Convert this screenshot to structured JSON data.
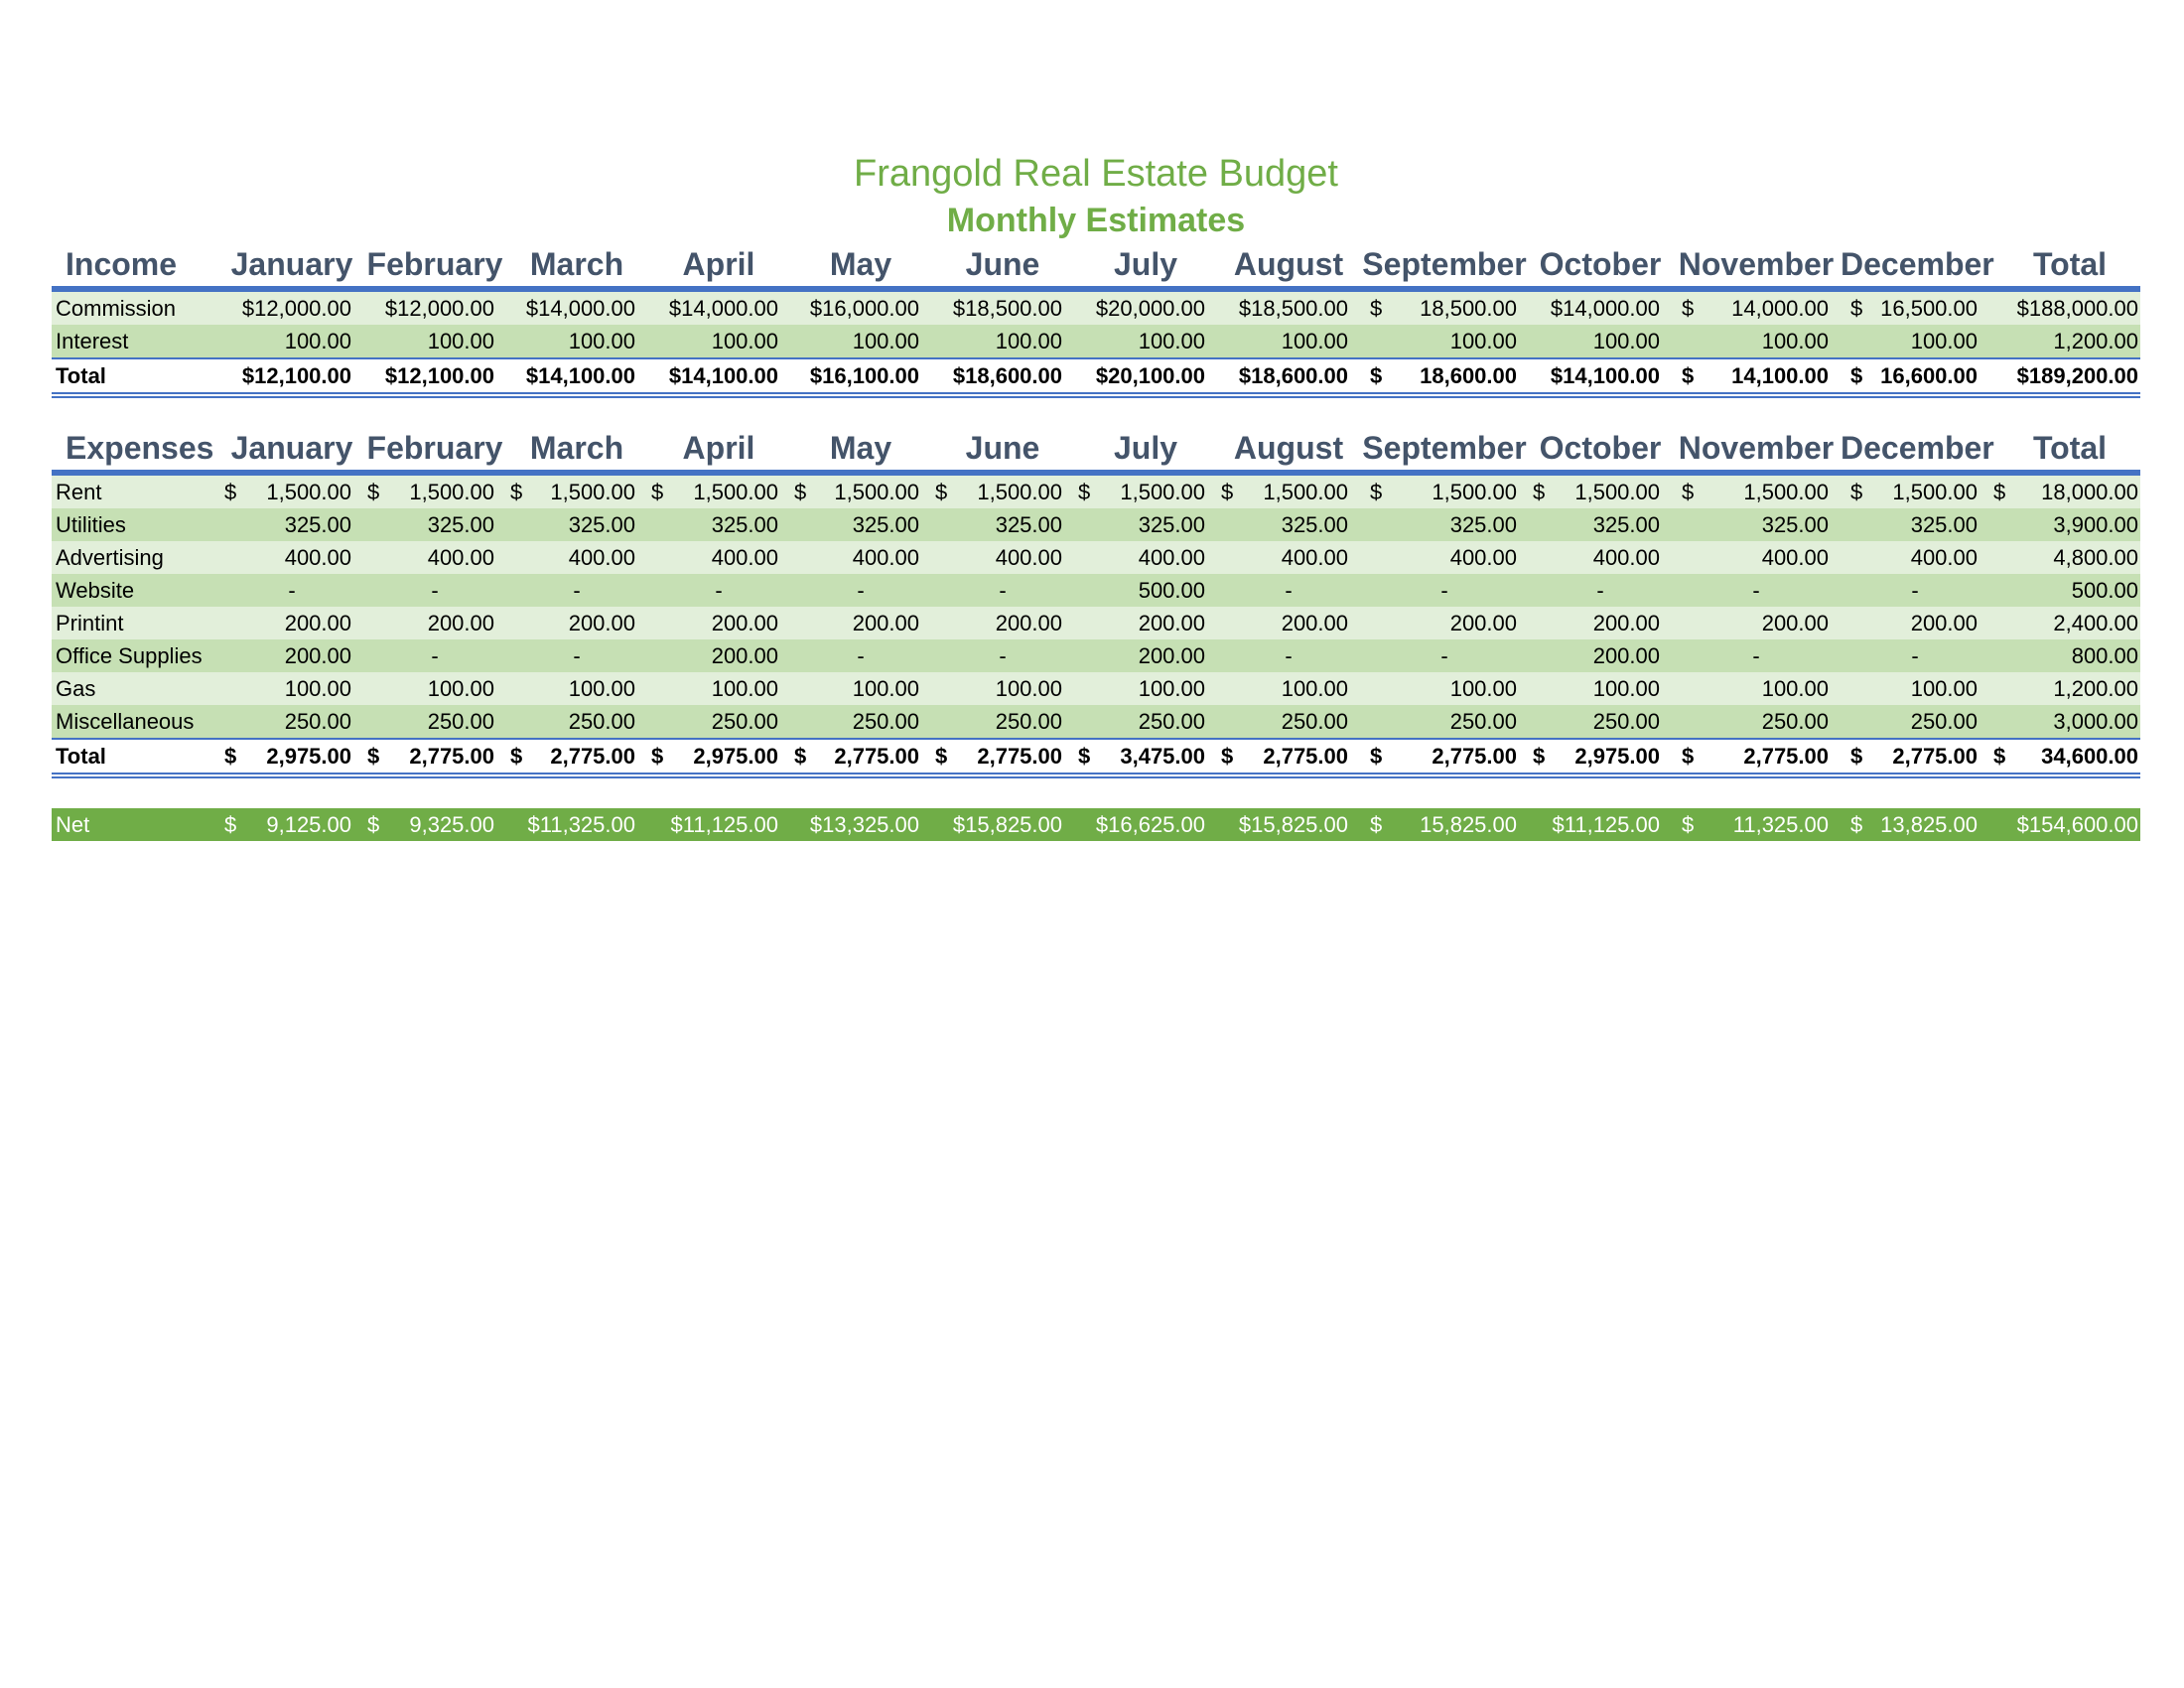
{
  "title": "Frangold Real Estate Budget",
  "subtitle": "Monthly Estimates",
  "months": [
    "January",
    "February",
    "March",
    "April",
    "May",
    "June",
    "July",
    "August",
    "September",
    "October",
    "November",
    "December",
    "Total"
  ],
  "income": {
    "header": "Income",
    "rows": [
      {
        "label": "Commission",
        "values": [
          {
            "v": "$12,000.00"
          },
          {
            "v": "$12,000.00"
          },
          {
            "v": "$14,000.00"
          },
          {
            "v": "$14,000.00"
          },
          {
            "v": "$16,000.00"
          },
          {
            "v": "$18,500.00"
          },
          {
            "v": "$20,000.00"
          },
          {
            "v": "$18,500.00"
          },
          {
            "s": "$",
            "v": "18,500.00"
          },
          {
            "v": "$14,000.00"
          },
          {
            "s": "$",
            "v": "14,000.00"
          },
          {
            "s": "$",
            "v": "16,500.00"
          },
          {
            "v": "$188,000.00"
          }
        ]
      },
      {
        "label": "Interest",
        "values": [
          {
            "v": "100.00"
          },
          {
            "v": "100.00"
          },
          {
            "v": "100.00"
          },
          {
            "v": "100.00"
          },
          {
            "v": "100.00"
          },
          {
            "v": "100.00"
          },
          {
            "v": "100.00"
          },
          {
            "v": "100.00"
          },
          {
            "v": "100.00"
          },
          {
            "v": "100.00"
          },
          {
            "v": "100.00"
          },
          {
            "v": "100.00"
          },
          {
            "v": "1,200.00"
          }
        ]
      }
    ],
    "total": {
      "label": "Total",
      "values": [
        {
          "v": "$12,100.00"
        },
        {
          "v": "$12,100.00"
        },
        {
          "v": "$14,100.00"
        },
        {
          "v": "$14,100.00"
        },
        {
          "v": "$16,100.00"
        },
        {
          "v": "$18,600.00"
        },
        {
          "v": "$20,100.00"
        },
        {
          "v": "$18,600.00"
        },
        {
          "s": "$",
          "v": "18,600.00"
        },
        {
          "v": "$14,100.00"
        },
        {
          "s": "$",
          "v": "14,100.00"
        },
        {
          "s": "$",
          "v": "16,600.00"
        },
        {
          "v": "$189,200.00"
        }
      ]
    }
  },
  "expenses": {
    "header": "Expenses",
    "rows": [
      {
        "label": "Rent",
        "values": [
          {
            "s": "$",
            "v": "1,500.00"
          },
          {
            "s": "$",
            "v": "1,500.00"
          },
          {
            "s": "$",
            "v": "1,500.00"
          },
          {
            "s": "$",
            "v": "1,500.00"
          },
          {
            "s": "$",
            "v": "1,500.00"
          },
          {
            "s": "$",
            "v": "1,500.00"
          },
          {
            "s": "$",
            "v": "1,500.00"
          },
          {
            "s": "$",
            "v": "1,500.00"
          },
          {
            "s": "$",
            "v": "1,500.00"
          },
          {
            "s": "$",
            "v": "1,500.00"
          },
          {
            "s": "$",
            "v": "1,500.00"
          },
          {
            "s": "$",
            "v": "1,500.00"
          },
          {
            "s": "$",
            "v": "18,000.00"
          }
        ]
      },
      {
        "label": "Utilities",
        "values": [
          {
            "v": "325.00"
          },
          {
            "v": "325.00"
          },
          {
            "v": "325.00"
          },
          {
            "v": "325.00"
          },
          {
            "v": "325.00"
          },
          {
            "v": "325.00"
          },
          {
            "v": "325.00"
          },
          {
            "v": "325.00"
          },
          {
            "v": "325.00"
          },
          {
            "v": "325.00"
          },
          {
            "v": "325.00"
          },
          {
            "v": "325.00"
          },
          {
            "v": "3,900.00"
          }
        ]
      },
      {
        "label": "Advertising",
        "values": [
          {
            "v": "400.00"
          },
          {
            "v": "400.00"
          },
          {
            "v": "400.00"
          },
          {
            "v": "400.00"
          },
          {
            "v": "400.00"
          },
          {
            "v": "400.00"
          },
          {
            "v": "400.00"
          },
          {
            "v": "400.00"
          },
          {
            "v": "400.00"
          },
          {
            "v": "400.00"
          },
          {
            "v": "400.00"
          },
          {
            "v": "400.00"
          },
          {
            "v": "4,800.00"
          }
        ]
      },
      {
        "label": "Website",
        "values": [
          {
            "v": "-",
            "c": 1
          },
          {
            "v": "-",
            "c": 1
          },
          {
            "v": "-",
            "c": 1
          },
          {
            "v": "-",
            "c": 1
          },
          {
            "v": "-",
            "c": 1
          },
          {
            "v": "-",
            "c": 1
          },
          {
            "v": "500.00"
          },
          {
            "v": "-",
            "c": 1
          },
          {
            "v": "-",
            "c": 1
          },
          {
            "v": "-",
            "c": 1
          },
          {
            "v": "-",
            "c": 1
          },
          {
            "v": "-",
            "c": 1
          },
          {
            "v": "500.00"
          }
        ]
      },
      {
        "label": "Printint",
        "values": [
          {
            "v": "200.00"
          },
          {
            "v": "200.00"
          },
          {
            "v": "200.00"
          },
          {
            "v": "200.00"
          },
          {
            "v": "200.00"
          },
          {
            "v": "200.00"
          },
          {
            "v": "200.00"
          },
          {
            "v": "200.00"
          },
          {
            "v": "200.00"
          },
          {
            "v": "200.00"
          },
          {
            "v": "200.00"
          },
          {
            "v": "200.00"
          },
          {
            "v": "2,400.00"
          }
        ]
      },
      {
        "label": "Office Supplies",
        "values": [
          {
            "v": "200.00"
          },
          {
            "v": "-",
            "c": 1
          },
          {
            "v": "-",
            "c": 1
          },
          {
            "v": "200.00"
          },
          {
            "v": "-",
            "c": 1
          },
          {
            "v": "-",
            "c": 1
          },
          {
            "v": "200.00"
          },
          {
            "v": "-",
            "c": 1
          },
          {
            "v": "-",
            "c": 1
          },
          {
            "v": "200.00"
          },
          {
            "v": "-",
            "c": 1
          },
          {
            "v": "-",
            "c": 1
          },
          {
            "v": "800.00"
          }
        ]
      },
      {
        "label": "Gas",
        "values": [
          {
            "v": "100.00"
          },
          {
            "v": "100.00"
          },
          {
            "v": "100.00"
          },
          {
            "v": "100.00"
          },
          {
            "v": "100.00"
          },
          {
            "v": "100.00"
          },
          {
            "v": "100.00"
          },
          {
            "v": "100.00"
          },
          {
            "v": "100.00"
          },
          {
            "v": "100.00"
          },
          {
            "v": "100.00"
          },
          {
            "v": "100.00"
          },
          {
            "v": "1,200.00"
          }
        ]
      },
      {
        "label": "Miscellaneous",
        "values": [
          {
            "v": "250.00"
          },
          {
            "v": "250.00"
          },
          {
            "v": "250.00"
          },
          {
            "v": "250.00"
          },
          {
            "v": "250.00"
          },
          {
            "v": "250.00"
          },
          {
            "v": "250.00"
          },
          {
            "v": "250.00"
          },
          {
            "v": "250.00"
          },
          {
            "v": "250.00"
          },
          {
            "v": "250.00"
          },
          {
            "v": "250.00"
          },
          {
            "v": "3,000.00"
          }
        ]
      }
    ],
    "total": {
      "label": "Total",
      "values": [
        {
          "s": "$",
          "v": "2,975.00"
        },
        {
          "s": "$",
          "v": "2,775.00"
        },
        {
          "s": "$",
          "v": "2,775.00"
        },
        {
          "s": "$",
          "v": "2,975.00"
        },
        {
          "s": "$",
          "v": "2,775.00"
        },
        {
          "s": "$",
          "v": "2,775.00"
        },
        {
          "s": "$",
          "v": "3,475.00"
        },
        {
          "s": "$",
          "v": "2,775.00"
        },
        {
          "s": "$",
          "v": "2,775.00"
        },
        {
          "s": "$",
          "v": "2,975.00"
        },
        {
          "s": "$",
          "v": "2,775.00"
        },
        {
          "s": "$",
          "v": "2,775.00"
        },
        {
          "s": "$",
          "v": "34,600.00"
        }
      ]
    }
  },
  "net": {
    "label": "Net",
    "values": [
      {
        "s": "$",
        "v": "9,125.00"
      },
      {
        "s": "$",
        "v": "9,325.00"
      },
      {
        "v": "$11,325.00"
      },
      {
        "v": "$11,125.00"
      },
      {
        "v": "$13,325.00"
      },
      {
        "v": "$15,825.00"
      },
      {
        "v": "$16,625.00"
      },
      {
        "v": "$15,825.00"
      },
      {
        "s": "$",
        "v": "15,825.00"
      },
      {
        "v": "$11,125.00"
      },
      {
        "s": "$",
        "v": "11,325.00"
      },
      {
        "s": "$",
        "v": "13,825.00"
      },
      {
        "v": "$154,600.00"
      }
    ]
  },
  "colors": {
    "title": "#70ad47",
    "header": "#44546a",
    "rule": "#4472c4",
    "band_light": "#e2efda",
    "band_dark": "#c6e0b4",
    "net_fill": "#70ad47"
  }
}
